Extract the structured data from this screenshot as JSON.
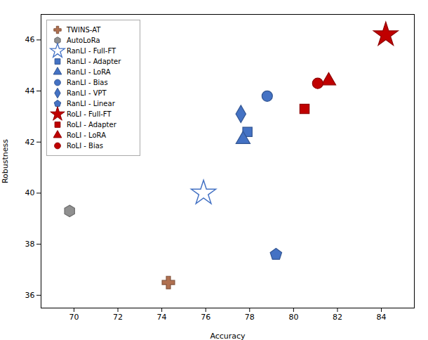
{
  "chart_data": {
    "type": "scatter",
    "xlabel": "Accuracy",
    "ylabel": "Robustness",
    "xlim": [
      68.5,
      85.5
    ],
    "ylim": [
      35.5,
      47.0
    ],
    "xticks": [
      70,
      72,
      74,
      76,
      78,
      80,
      82,
      84
    ],
    "yticks": [
      36,
      38,
      40,
      42,
      44,
      46
    ],
    "grid": false,
    "legend": "upper-left",
    "series": [
      {
        "name": "TWINS-AT",
        "color": "#B07050",
        "marker": "plus",
        "x": [
          74.3
        ],
        "values": [
          36.5
        ]
      },
      {
        "name": "AutoLoRa",
        "color": "#909090",
        "marker": "hexagon",
        "x": [
          69.8
        ],
        "values": [
          39.3
        ]
      },
      {
        "name": "RanLI - Full-FT",
        "color": "#4472C4",
        "marker": "star-open",
        "x": [
          75.9
        ],
        "values": [
          40.0
        ]
      },
      {
        "name": "RanLI - Adapter",
        "color": "#4472C4",
        "marker": "square",
        "x": [
          77.9
        ],
        "values": [
          42.4
        ]
      },
      {
        "name": "RanLI - LoRA",
        "color": "#4472C4",
        "marker": "triangle",
        "x": [
          77.7
        ],
        "values": [
          42.1
        ]
      },
      {
        "name": "RanLI - Bias",
        "color": "#4472C4",
        "marker": "circle",
        "x": [
          78.8
        ],
        "values": [
          43.8
        ]
      },
      {
        "name": "RanLI - VPT",
        "color": "#4472C4",
        "marker": "diamond",
        "x": [
          77.6
        ],
        "values": [
          43.1
        ]
      },
      {
        "name": "RanLI - Linear",
        "color": "#4472C4",
        "marker": "pentagon",
        "x": [
          79.2
        ],
        "values": [
          37.6
        ]
      },
      {
        "name": "RoLI - Full-FT",
        "color": "#C00000",
        "marker": "star",
        "x": [
          84.2
        ],
        "values": [
          46.2
        ]
      },
      {
        "name": "RoLI - Adapter",
        "color": "#C00000",
        "marker": "square",
        "x": [
          80.5
        ],
        "values": [
          43.3
        ]
      },
      {
        "name": "RoLI - LoRA",
        "color": "#C00000",
        "marker": "triangle",
        "x": [
          81.6
        ],
        "values": [
          44.4
        ]
      },
      {
        "name": "RoLI - Bias",
        "color": "#C00000",
        "marker": "circle",
        "x": [
          81.1
        ],
        "values": [
          44.3
        ]
      }
    ]
  }
}
